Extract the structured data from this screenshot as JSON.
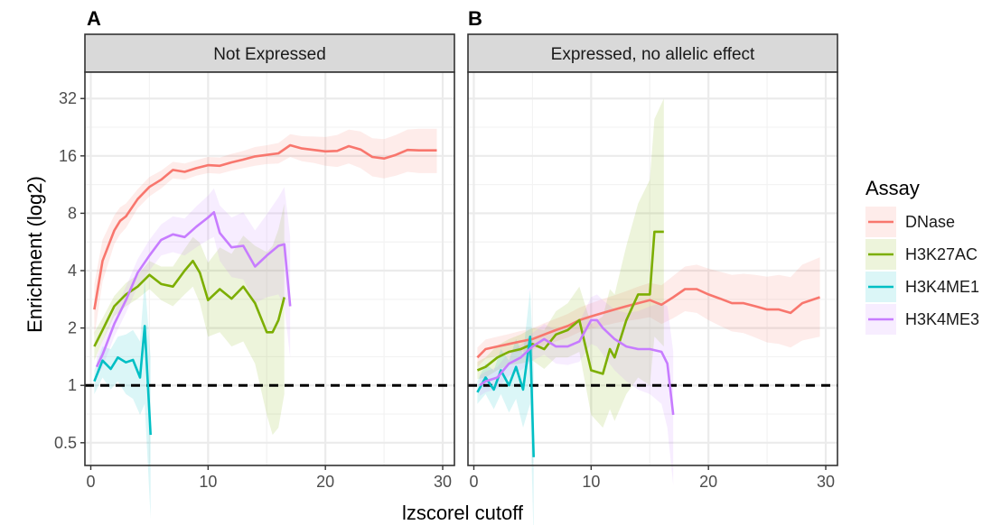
{
  "figure": {
    "ylabel": "Enrichment (log2)",
    "xlabel": "lzscorel cutoff",
    "legend_title": "Assay"
  },
  "chart_data": [
    {
      "type": "line",
      "panel_letter": "A",
      "title": "Not Expressed",
      "xlabel": "lzscorel cutoff",
      "ylabel": "Enrichment (log2)",
      "xlim": [
        -0.5,
        31
      ],
      "xticks": [
        0,
        10,
        20,
        30
      ],
      "ylim": [
        0.38,
        44
      ],
      "yscale": "log2",
      "yticks": [
        0.5,
        1,
        2,
        4,
        8,
        16,
        32
      ],
      "ytick_labels": [
        "0.5",
        "1",
        "2",
        "4",
        "8",
        "16",
        "32"
      ],
      "grid": true,
      "reference_line": {
        "y": 1,
        "style": "dashed",
        "color": "#000000"
      },
      "series": [
        {
          "name": "DNase",
          "color": "#F8766D",
          "x": [
            0.3,
            1,
            2,
            2.5,
            3,
            4,
            5,
            6,
            7,
            8,
            9,
            10,
            11,
            12,
            13,
            14,
            15,
            16,
            17,
            18,
            19,
            20,
            21,
            22,
            23,
            24,
            25,
            26,
            27,
            28,
            29.5
          ],
          "y": [
            2.5,
            4.5,
            6.5,
            7.3,
            7.7,
            9.5,
            11,
            12,
            13.5,
            13.2,
            13.8,
            14.3,
            14.2,
            14.8,
            15.3,
            15.9,
            16.2,
            16.5,
            18.2,
            17.5,
            17.2,
            16.9,
            17,
            18,
            17.3,
            15.8,
            15.5,
            16.2,
            17.2,
            17.1,
            17.1
          ],
          "lower": [
            1.8,
            3.5,
            5.5,
            6.2,
            6.7,
            8.5,
            9.8,
            10.8,
            12.2,
            12,
            12.6,
            13,
            12.9,
            13.4,
            13.8,
            14.2,
            14.5,
            14.6,
            15.8,
            15,
            14.7,
            14.2,
            14,
            14.6,
            13.8,
            12.5,
            12.2,
            12.6,
            13.2,
            13,
            13
          ],
          "upper": [
            3.4,
            5.8,
            7.8,
            8.6,
            9,
            10.7,
            12.4,
            13.4,
            14.9,
            14.6,
            15.2,
            15.8,
            15.7,
            16.4,
            17,
            17.8,
            18.2,
            18.7,
            20.8,
            20.3,
            20.2,
            20.1,
            20.6,
            22,
            21.5,
            19.8,
            19.6,
            20.6,
            22,
            22.2,
            22.2
          ]
        },
        {
          "name": "H3K27AC",
          "color": "#7CAE00",
          "x": [
            0.3,
            1,
            2,
            3,
            4,
            5,
            6,
            7,
            8,
            8.7,
            9.3,
            10,
            11,
            12,
            13,
            14,
            15,
            15.5,
            16,
            16.5
          ],
          "y": [
            1.6,
            1.95,
            2.6,
            3.0,
            3.3,
            3.8,
            3.4,
            3.3,
            4.0,
            4.5,
            3.9,
            2.8,
            3.2,
            2.85,
            3.3,
            2.7,
            1.9,
            1.9,
            2.2,
            2.9
          ],
          "lower": [
            1.35,
            1.7,
            2.3,
            2.6,
            2.85,
            3.2,
            2.8,
            2.6,
            3.0,
            3.3,
            2.7,
            1.8,
            1.9,
            1.6,
            1.7,
            1.3,
            0.7,
            0.55,
            0.6,
            0.9
          ],
          "upper": [
            1.9,
            2.25,
            2.95,
            3.45,
            3.8,
            4.5,
            4.2,
            4.2,
            5.2,
            6.0,
            5.6,
            4.4,
            5.3,
            4.9,
            6.1,
            5.4,
            5.0,
            5.4,
            6.6,
            9.0
          ]
        },
        {
          "name": "H3K4ME1",
          "color": "#00BFC4",
          "x": [
            0.3,
            1,
            1.7,
            2.3,
            3,
            3.6,
            4.2,
            4.6,
            5.1
          ],
          "y": [
            1.05,
            1.35,
            1.22,
            1.4,
            1.32,
            1.36,
            1.1,
            2.05,
            0.55
          ],
          "lower": [
            0.9,
            1.1,
            0.95,
            1.05,
            0.9,
            0.85,
            0.7,
            0.8,
            0.2
          ],
          "upper": [
            1.2,
            1.6,
            1.55,
            1.8,
            1.85,
            1.95,
            1.7,
            3.6,
            1.4
          ]
        },
        {
          "name": "H3K4ME3",
          "color": "#C77CFF",
          "x": [
            0.5,
            1,
            2,
            3,
            4,
            5,
            6,
            7,
            8,
            9,
            10,
            10.5,
            11,
            12,
            13,
            14,
            15,
            16,
            16.5,
            17
          ],
          "y": [
            1.25,
            1.45,
            2.1,
            2.8,
            3.9,
            4.8,
            5.8,
            6.2,
            6.0,
            6.8,
            7.6,
            8.1,
            6.3,
            5.3,
            5.4,
            4.2,
            4.8,
            5.4,
            5.5,
            2.6
          ],
          "lower": [
            1.1,
            1.25,
            1.8,
            2.4,
            3.3,
            4.0,
            4.8,
            5.0,
            4.8,
            5.3,
            5.8,
            6.0,
            4.5,
            3.7,
            3.6,
            2.7,
            2.9,
            3.0,
            2.6,
            1.4
          ],
          "upper": [
            1.42,
            1.7,
            2.45,
            3.3,
            4.6,
            5.8,
            7.0,
            7.7,
            7.5,
            8.7,
            9.9,
            10.8,
            8.8,
            7.6,
            8.1,
            6.5,
            7.9,
            9.7,
            11.0,
            6.0
          ]
        }
      ]
    },
    {
      "type": "line",
      "panel_letter": "B",
      "title": "Expressed, no allelic effect",
      "xlabel": "lzscorel cutoff",
      "ylabel": "Enrichment (log2)",
      "xlim": [
        -0.5,
        31
      ],
      "xticks": [
        0,
        10,
        20,
        30
      ],
      "ylim": [
        0.38,
        44
      ],
      "yscale": "log2",
      "yticks": [
        0.5,
        1,
        2,
        4,
        8,
        16,
        32
      ],
      "ytick_labels": [
        "0.5",
        "1",
        "2",
        "4",
        "8",
        "16",
        "32"
      ],
      "grid": true,
      "reference_line": {
        "y": 1,
        "style": "dashed",
        "color": "#000000"
      },
      "series": [
        {
          "name": "DNase",
          "color": "#F8766D",
          "x": [
            0.3,
            1,
            2,
            3,
            4,
            5,
            6,
            7,
            8,
            9,
            10,
            11,
            12,
            13,
            14,
            15,
            16,
            17,
            18,
            19,
            20,
            21,
            22,
            23,
            24,
            25,
            26,
            27,
            28,
            29.5
          ],
          "y": [
            1.4,
            1.55,
            1.6,
            1.65,
            1.7,
            1.75,
            1.85,
            1.95,
            2.05,
            2.2,
            2.3,
            2.4,
            2.5,
            2.6,
            2.7,
            2.8,
            2.65,
            2.9,
            3.2,
            3.2,
            3.0,
            2.85,
            2.7,
            2.7,
            2.6,
            2.5,
            2.5,
            2.4,
            2.7,
            2.9
          ],
          "lower": [
            1.25,
            1.38,
            1.43,
            1.47,
            1.5,
            1.54,
            1.62,
            1.7,
            1.78,
            1.9,
            1.98,
            2.05,
            2.12,
            2.18,
            2.22,
            2.28,
            2.1,
            2.25,
            2.45,
            2.4,
            2.2,
            2.05,
            1.92,
            1.88,
            1.78,
            1.68,
            1.65,
            1.58,
            1.72,
            1.8
          ],
          "upper": [
            1.58,
            1.74,
            1.8,
            1.86,
            1.93,
            1.99,
            2.12,
            2.24,
            2.37,
            2.56,
            2.7,
            2.84,
            2.97,
            3.12,
            3.3,
            3.45,
            3.35,
            3.75,
            4.2,
            4.3,
            4.1,
            3.95,
            3.8,
            3.85,
            3.8,
            3.72,
            3.8,
            3.7,
            4.3,
            4.7
          ]
        },
        {
          "name": "H3K27AC",
          "color": "#7CAE00",
          "x": [
            0.3,
            1,
            2,
            3,
            4,
            5,
            6,
            7,
            8,
            9,
            10,
            11,
            11.6,
            12,
            13,
            14,
            15,
            15.4,
            16.2
          ],
          "y": [
            1.2,
            1.25,
            1.4,
            1.5,
            1.55,
            1.65,
            1.55,
            1.85,
            1.95,
            2.2,
            1.2,
            1.15,
            1.55,
            1.4,
            2.2,
            3.0,
            3.0,
            6.4,
            6.4
          ],
          "lower": [
            1.08,
            1.1,
            1.2,
            1.28,
            1.3,
            1.35,
            1.22,
            1.4,
            1.4,
            1.5,
            0.7,
            0.6,
            0.75,
            0.65,
            0.9,
            1.1,
            1.0,
            1.8,
            1.6
          ],
          "upper": [
            1.33,
            1.4,
            1.62,
            1.75,
            1.85,
            2.0,
            1.95,
            2.45,
            2.7,
            3.3,
            2.1,
            2.3,
            3.2,
            3.0,
            5.4,
            9.0,
            12.0,
            25,
            32
          ]
        },
        {
          "name": "H3K4ME1",
          "color": "#00BFC4",
          "x": [
            0.3,
            1,
            1.7,
            2.3,
            3,
            3.6,
            4.2,
            4.8,
            5.1
          ],
          "y": [
            0.92,
            1.1,
            0.95,
            1.2,
            1.0,
            1.25,
            0.95,
            1.8,
            0.42
          ],
          "lower": [
            0.8,
            0.9,
            0.75,
            0.9,
            0.72,
            0.85,
            0.6,
            0.8,
            0.15
          ],
          "upper": [
            1.05,
            1.3,
            1.2,
            1.55,
            1.35,
            1.75,
            1.45,
            3.2,
            1.2
          ]
        },
        {
          "name": "H3K4ME3",
          "color": "#C77CFF",
          "x": [
            0.5,
            1,
            2,
            3,
            4,
            5,
            6,
            7,
            8,
            9,
            10,
            10.5,
            11,
            12,
            13,
            14,
            15,
            16,
            16.5,
            17
          ],
          "y": [
            1.0,
            1.05,
            1.1,
            1.3,
            1.4,
            1.6,
            1.75,
            1.6,
            1.6,
            1.7,
            2.2,
            2.2,
            2.0,
            1.75,
            1.6,
            1.55,
            1.55,
            1.5,
            1.3,
            0.7
          ],
          "lower": [
            0.88,
            0.92,
            0.96,
            1.12,
            1.2,
            1.35,
            1.45,
            1.3,
            1.28,
            1.33,
            1.65,
            1.6,
            1.45,
            1.2,
            1.05,
            0.95,
            0.9,
            0.8,
            0.6,
            0.3
          ],
          "upper": [
            1.13,
            1.18,
            1.25,
            1.5,
            1.63,
            1.88,
            2.1,
            1.95,
            1.98,
            2.15,
            2.9,
            3.0,
            2.8,
            2.5,
            2.4,
            2.45,
            2.6,
            2.7,
            2.6,
            1.5
          ]
        }
      ]
    }
  ]
}
